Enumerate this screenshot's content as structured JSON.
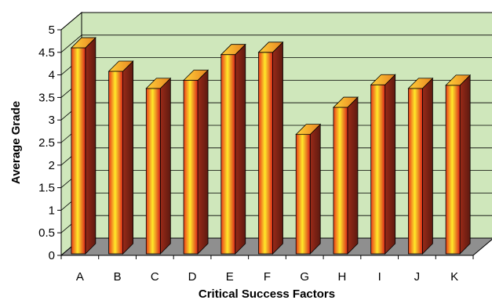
{
  "chart_data": {
    "type": "bar",
    "title": "",
    "xlabel": "Critical Success Factors",
    "ylabel": "Average Grade",
    "categories": [
      "A",
      "B",
      "C",
      "D",
      "E",
      "F",
      "G",
      "H",
      "I",
      "J",
      "K"
    ],
    "values": [
      4.6,
      4.08,
      3.7,
      3.88,
      4.45,
      4.5,
      2.68,
      3.28,
      3.78,
      3.7,
      3.77
    ],
    "yticks": [
      "0",
      "0.5",
      "1",
      "1.5",
      "2",
      "2.5",
      "3",
      "3.5",
      "4",
      "4.5",
      "5"
    ],
    "ylim": [
      0,
      5
    ],
    "grid": true,
    "legend": "none",
    "colors": {
      "wall": "#cfe7bb",
      "floor": "#8f8f8f",
      "bar_front_light": "#ffe92a",
      "bar_front_dark": "#d8201a",
      "bar_side": "#7a1f14",
      "bar_top": "#f2b830"
    }
  }
}
